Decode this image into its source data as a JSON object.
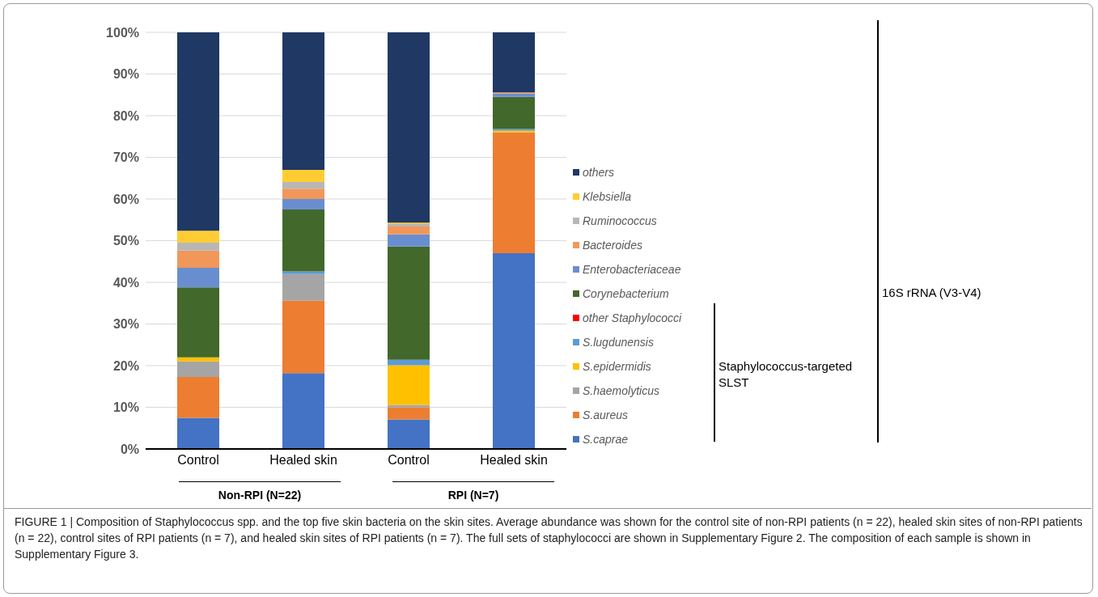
{
  "chart_data": {
    "type": "bar",
    "stacked": true,
    "categories": [
      "Control",
      "Healed skin",
      "Control",
      "Healed skin"
    ],
    "ylim": [
      0,
      100
    ],
    "yticks": [
      {
        "value": 0,
        "label": "0%"
      },
      {
        "value": 10,
        "label": "10%"
      },
      {
        "value": 20,
        "label": "20%"
      },
      {
        "value": 30,
        "label": "30%"
      },
      {
        "value": 40,
        "label": "40%"
      },
      {
        "value": 50,
        "label": "50%"
      },
      {
        "value": 60,
        "label": "60%"
      },
      {
        "value": 70,
        "label": "70%"
      },
      {
        "value": 80,
        "label": "80%"
      },
      {
        "value": 90,
        "label": "90%"
      },
      {
        "value": 100,
        "label": "100%"
      }
    ],
    "grid": "y",
    "legend": "right",
    "series": [
      {
        "name": "S.caprae",
        "color": "#4472c4",
        "values": [
          7.5,
          18.2,
          7.1,
          47.0
        ]
      },
      {
        "name": "S.aureus",
        "color": "#ed7d31",
        "values": [
          9.8,
          17.4,
          2.9,
          29.0
        ]
      },
      {
        "name": "S.haemolyticus",
        "color": "#a5a5a5",
        "values": [
          3.7,
          6.4,
          0.6,
          0
        ]
      },
      {
        "name": "S.epidermidis",
        "color": "#ffc000",
        "values": [
          1.0,
          0,
          9.5,
          0.4
        ]
      },
      {
        "name": "S.lugdunensis",
        "color": "#5b9bd5",
        "values": [
          0,
          0.6,
          1.3,
          0.4
        ]
      },
      {
        "name": "other Staphylococci",
        "color": "#ff0000",
        "values": [
          0,
          0,
          0,
          0
        ]
      },
      {
        "name": "Corynebacterium",
        "color": "#43682b",
        "values": [
          16.8,
          14.9,
          27.2,
          7.7
        ]
      },
      {
        "name": "Enterobacteriaceae",
        "color": "#698ed0",
        "values": [
          4.7,
          2.5,
          2.9,
          0.8
        ]
      },
      {
        "name": "Bacteroides",
        "color": "#f1975a",
        "values": [
          4.1,
          2.5,
          1.9,
          0.3
        ]
      },
      {
        "name": "Ruminococcus",
        "color": "#b7b7b7",
        "values": [
          1.9,
          1.6,
          0.6,
          0
        ]
      },
      {
        "name": "Klebsiella",
        "color": "#ffcd33",
        "values": [
          2.9,
          2.9,
          0.3,
          0
        ]
      },
      {
        "name": "others",
        "color": "#203864",
        "values": [
          47.6,
          33.0,
          45.7,
          14.4
        ]
      }
    ],
    "annotations": [
      "Staphylococcus-targeted SLST",
      "16S rRNA (V3-V4)",
      "Non-RPI (N=22)",
      "RPI (N=7)",
      "FIGURE 1 | Composition of Staphylococcus spp. and the top five skin bacteria on the skin sites. Average abundance was shown for the control site of non-RPI patients (n = 22), healed skin sites of non-RPI patients (n = 22), control sites of RPI patients (n = 7), and healed skin sites of RPI patients (n = 7). The full sets of staphylococci are shown in Supplementary Figure 2. The composition of each sample is shown in Supplementary Figure 3."
    ]
  }
}
